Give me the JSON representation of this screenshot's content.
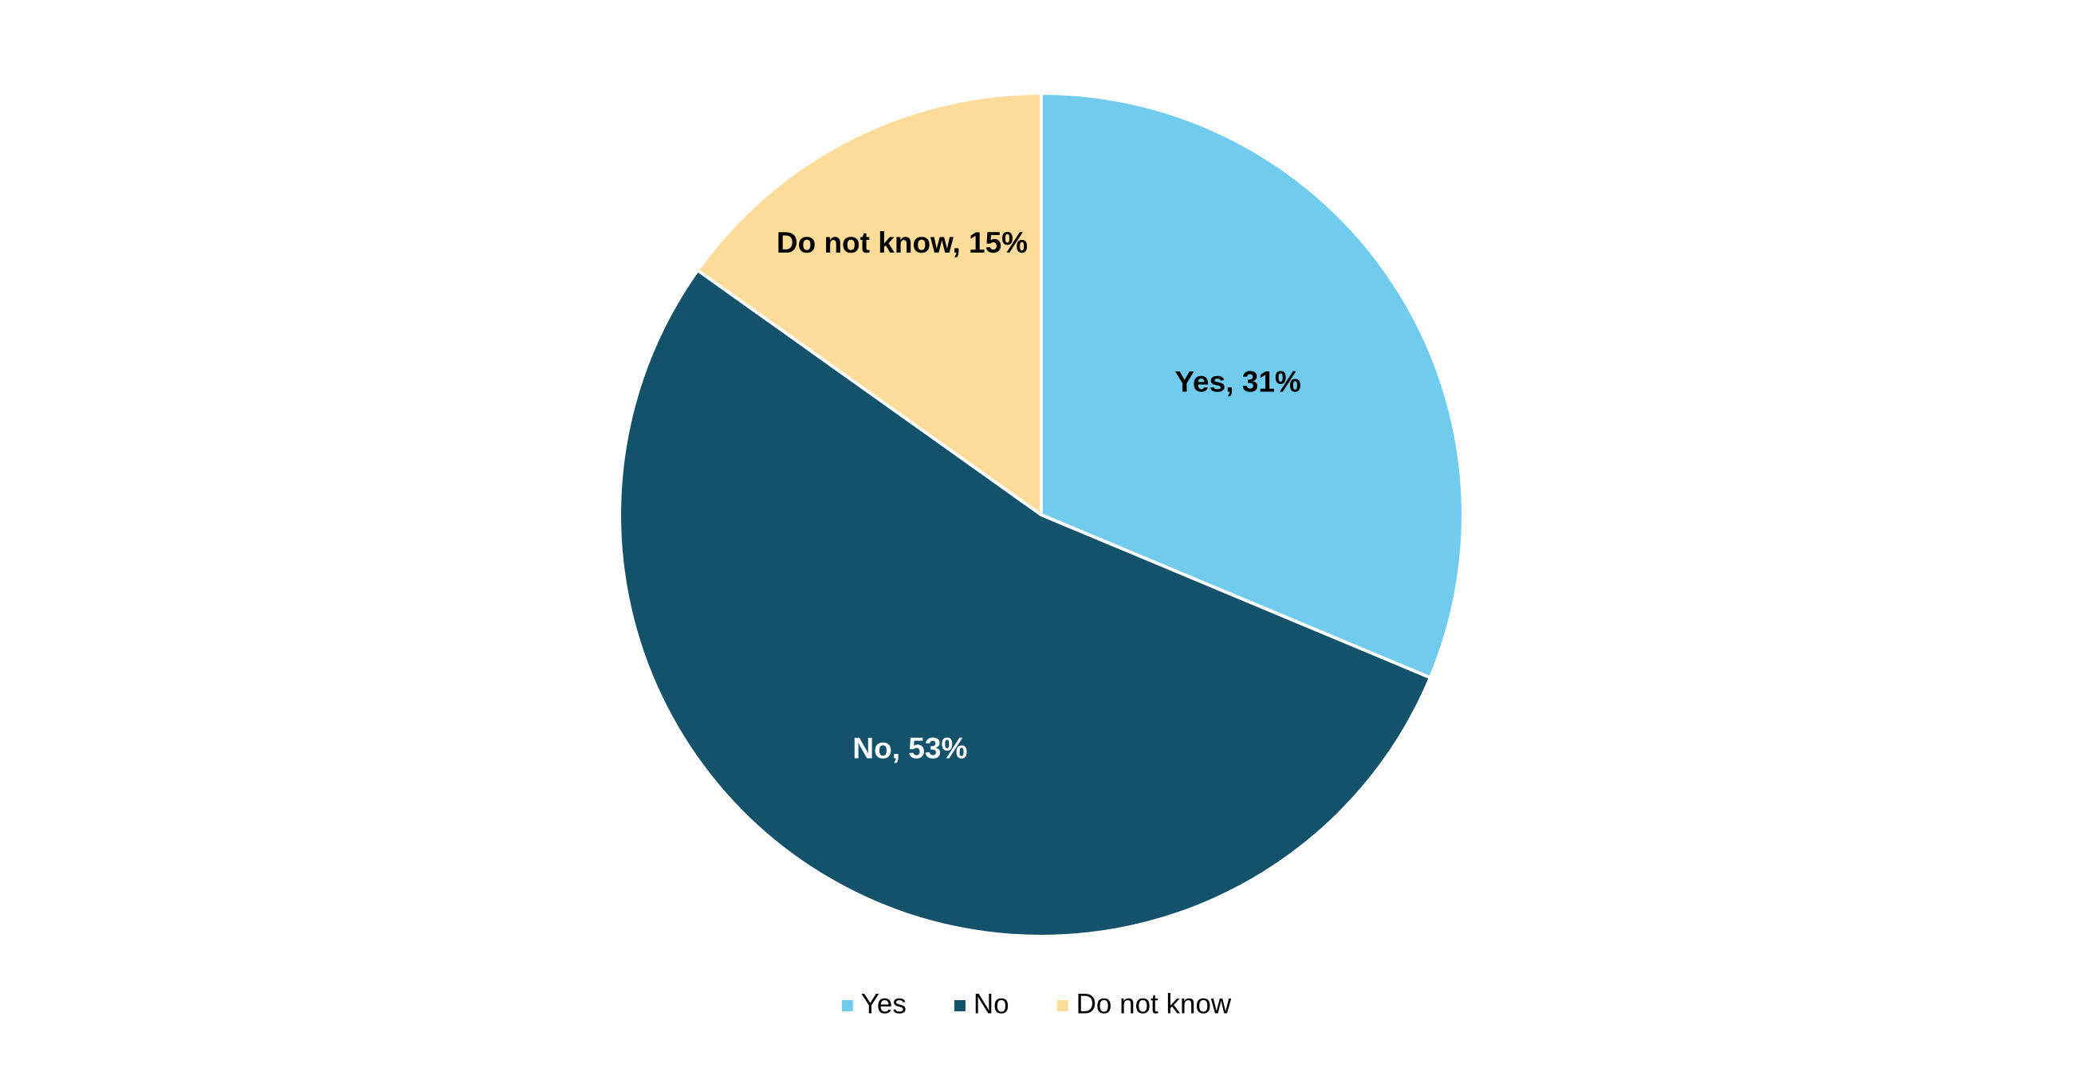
{
  "chart_data": {
    "type": "pie",
    "title": "",
    "legend_position": "bottom",
    "slices": [
      {
        "name": "Yes",
        "value": 31,
        "label": "Yes, 31%",
        "color": "#71cbec",
        "label_color": "#000000"
      },
      {
        "name": "No",
        "value": 53,
        "label": "No, 53%",
        "color": "#14516a",
        "label_color": "#ffffff"
      },
      {
        "name": "Do not know",
        "value": 15,
        "label": "Do not know, 15%",
        "color": "#fddb98",
        "label_color": "#000000"
      }
    ]
  }
}
